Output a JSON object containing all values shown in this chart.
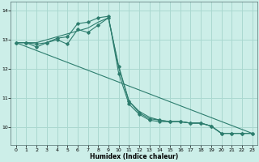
{
  "xlabel": "Humidex (Indice chaleur)",
  "ylabel": "",
  "bg_color": "#cceee8",
  "grid_color": "#aad8d0",
  "line_color": "#2d7d6e",
  "xlim": [
    -0.5,
    23.5
  ],
  "ylim": [
    9.4,
    14.3
  ],
  "yticks": [
    10,
    11,
    12,
    13,
    14
  ],
  "xticks": [
    0,
    1,
    2,
    3,
    4,
    5,
    6,
    7,
    8,
    9,
    10,
    11,
    12,
    13,
    14,
    15,
    16,
    17,
    18,
    19,
    20,
    21,
    22,
    23
  ],
  "lines": [
    {
      "x": [
        0,
        1,
        2,
        3,
        4,
        5,
        6,
        7,
        8,
        9,
        10,
        11,
        12,
        13,
        14,
        15,
        16,
        17,
        18,
        19,
        20,
        21,
        22,
        23
      ],
      "y": [
        12.9,
        12.9,
        12.85,
        12.9,
        13.05,
        13.1,
        13.55,
        13.6,
        13.75,
        13.8,
        11.85,
        10.8,
        10.45,
        10.25,
        10.2,
        10.2,
        10.2,
        10.15,
        10.15,
        10.05,
        9.8,
        9.8,
        9.8,
        9.8
      ],
      "marker": true
    },
    {
      "x": [
        0,
        1,
        2,
        3,
        4,
        5,
        6,
        7,
        8,
        9,
        10,
        11,
        12,
        13,
        14,
        15,
        16,
        17,
        18,
        19,
        20,
        21,
        22,
        23
      ],
      "y": [
        12.9,
        12.9,
        12.9,
        13.0,
        13.1,
        13.2,
        13.3,
        13.4,
        13.6,
        13.75,
        12.05,
        10.9,
        10.55,
        10.35,
        10.25,
        10.2,
        10.2,
        10.15,
        10.15,
        10.05,
        9.8,
        9.8,
        9.8,
        9.8
      ],
      "marker": false
    },
    {
      "x": [
        0,
        1,
        2,
        3,
        4,
        5,
        6,
        7,
        8,
        9,
        10,
        11,
        12,
        13,
        14,
        15,
        16,
        17,
        18,
        19,
        20,
        21,
        22,
        23
      ],
      "y": [
        12.9,
        12.9,
        12.75,
        12.9,
        13.0,
        12.85,
        13.35,
        13.25,
        13.5,
        13.75,
        12.1,
        10.9,
        10.5,
        10.3,
        10.25,
        10.2,
        10.2,
        10.15,
        10.15,
        10.05,
        9.8,
        9.8,
        9.8,
        9.8
      ],
      "marker": true
    },
    {
      "x": [
        0,
        23
      ],
      "y": [
        12.9,
        9.8
      ],
      "marker": false
    }
  ]
}
